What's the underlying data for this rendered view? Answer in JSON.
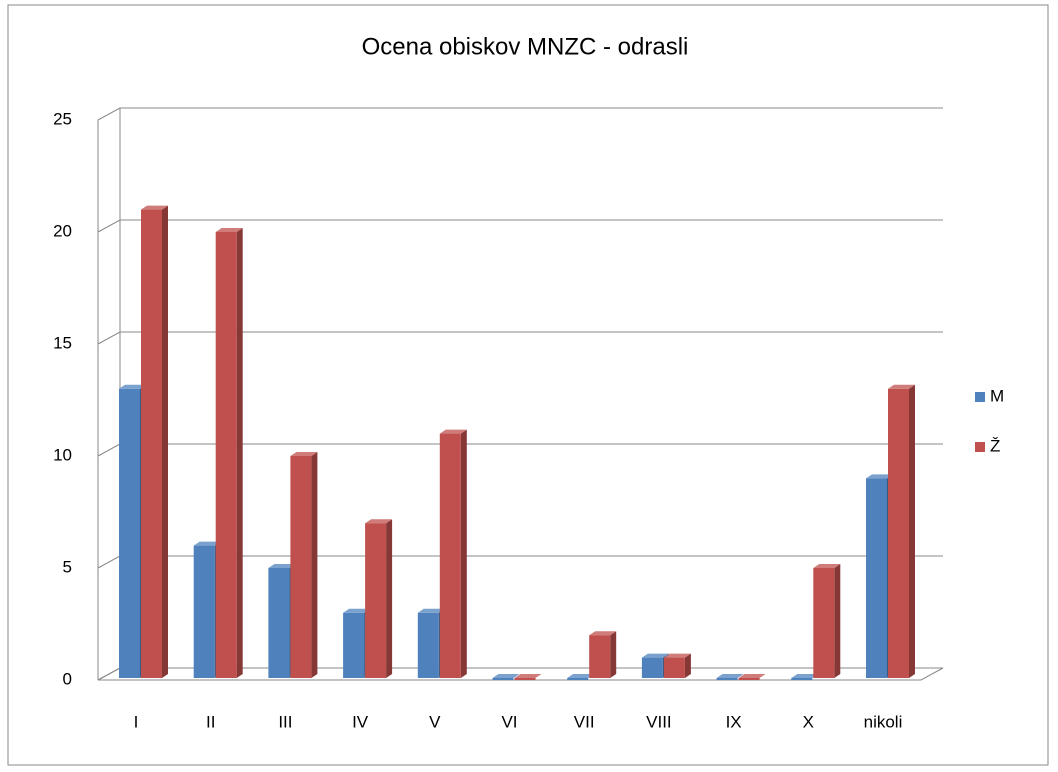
{
  "chart_data": {
    "type": "bar",
    "title": "Ocena obiskov MNZC - odrasli",
    "categories": [
      "I",
      "II",
      "III",
      "IV",
      "V",
      "VI",
      "VII",
      "VIII",
      "IX",
      "X",
      "nikoli"
    ],
    "series": [
      {
        "name": "M",
        "color": "#4f81bd",
        "values": [
          13,
          6,
          5,
          3,
          3,
          0,
          0,
          1,
          0,
          0,
          9
        ]
      },
      {
        "name": "Ž",
        "color": "#c0504d",
        "values": [
          21,
          20,
          10,
          7,
          11,
          0,
          2,
          1,
          0,
          5,
          13
        ]
      }
    ],
    "ylim": [
      0,
      25
    ],
    "yticks": [
      0,
      5,
      10,
      15,
      20,
      25
    ],
    "grid": true,
    "legend": "right"
  }
}
